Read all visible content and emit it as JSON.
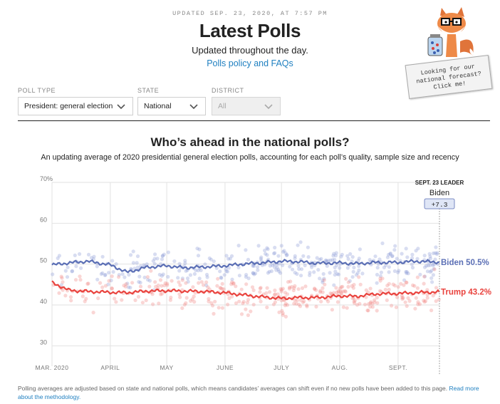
{
  "header": {
    "updated": "UPDATED SEP. 23, 2020, AT 7:57 PM",
    "title": "Latest Polls",
    "subtitle": "Updated throughout the day.",
    "policy_link": "Polls policy and FAQs"
  },
  "promo": {
    "card_line1": "Looking for our",
    "card_line2": "national forecast?",
    "card_line3": "Click me!",
    "icon": "fox-mascot-icon"
  },
  "filters": {
    "poll_type": {
      "label": "POLL TYPE",
      "value": "President: general election"
    },
    "state": {
      "label": "STATE",
      "value": "National"
    },
    "district": {
      "label": "DISTRICT",
      "value": "All"
    }
  },
  "chart_section": {
    "title": "Who’s ahead in the national polls?",
    "subtitle": "An updating average of 2020 presidential general election polls, accounting for each poll’s quality, sample size and recency"
  },
  "chart_data": {
    "type": "line",
    "title": "Who’s ahead in the national polls?",
    "x": [
      "2020-03-01",
      "2020-03-10",
      "2020-03-20",
      "2020-04-01",
      "2020-04-10",
      "2020-04-20",
      "2020-05-01",
      "2020-05-10",
      "2020-05-20",
      "2020-06-01",
      "2020-06-10",
      "2020-06-20",
      "2020-07-01",
      "2020-07-10",
      "2020-07-20",
      "2020-08-01",
      "2020-08-10",
      "2020-08-20",
      "2020-09-01",
      "2020-09-10",
      "2020-09-23"
    ],
    "series": [
      {
        "name": "Biden",
        "color": "#5b6fb5",
        "values": [
          49.8,
          50.3,
          50.7,
          49.8,
          48.0,
          49.2,
          49.6,
          49.1,
          49.3,
          49.6,
          50.0,
          50.3,
          50.7,
          50.6,
          50.2,
          50.3,
          50.1,
          50.4,
          50.4,
          50.7,
          50.5
        ]
      },
      {
        "name": "Trump",
        "color": "#e9433e",
        "values": [
          45.5,
          43.6,
          43.3,
          43.1,
          43.0,
          43.4,
          43.5,
          43.4,
          43.3,
          43.0,
          42.5,
          42.0,
          41.6,
          41.8,
          41.8,
          42.2,
          42.1,
          42.7,
          42.8,
          43.0,
          43.2
        ]
      }
    ],
    "ylim": [
      25,
      70
    ],
    "yticks": [
      30,
      40,
      50,
      60,
      70
    ],
    "ytick_labels": [
      "30",
      "40",
      "50",
      "60",
      "70%"
    ],
    "xtick_labels": [
      "MAR. 2020",
      "APRIL",
      "MAY",
      "JUNE",
      "JULY",
      "AUG.",
      "SEPT."
    ],
    "xtick_dates": [
      "2020-03-01",
      "2020-04-01",
      "2020-05-01",
      "2020-06-01",
      "2020-07-01",
      "2020-08-01",
      "2020-09-01"
    ],
    "end_labels": [
      "Biden 50.5%",
      "Trump 43.2%"
    ],
    "leader": {
      "heading": "SEPT. 23 LEADER",
      "name": "Biden",
      "margin": "+7.3"
    },
    "grid": true,
    "legend": "direct labels at right end of lines"
  },
  "footer": {
    "note": "Polling averages are adjusted based on state and national polls, which means candidates’ averages can shift even if no new polls have been added to this page.",
    "link": "Read more about the methodology."
  }
}
